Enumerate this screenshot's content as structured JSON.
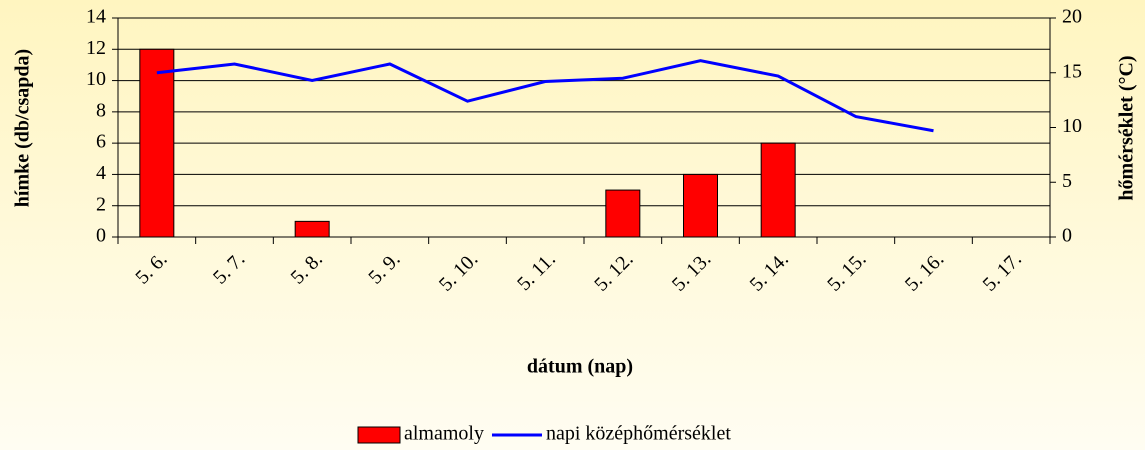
{
  "chart_data": {
    "type": "bar-line",
    "x_label": "dátum (nap)",
    "y_label": "hímke (db/csapda)",
    "y2_label": "hőmérséklet (°C)",
    "categories": [
      "5. 6.",
      "5. 7.",
      "5. 8.",
      "5. 9.",
      "5. 10.",
      "5. 11.",
      "5. 12.",
      "5. 13.",
      "5. 14.",
      "5. 15.",
      "5. 16.",
      "5. 17."
    ],
    "series": [
      {
        "name": "almamoly",
        "type": "bar",
        "color": "#ff0000",
        "values": [
          12,
          0,
          1,
          0,
          0,
          0,
          3,
          4,
          6,
          0,
          0,
          0
        ]
      },
      {
        "name": "napi középhőmérséklet",
        "type": "line",
        "axis": "y2",
        "color": "#0000ff",
        "values": [
          15.0,
          15.8,
          14.3,
          15.8,
          12.4,
          14.2,
          14.5,
          16.1,
          14.7,
          11.0,
          9.7,
          null
        ]
      }
    ],
    "ylim": [
      0,
      14
    ],
    "yticks": [
      0,
      2,
      4,
      6,
      8,
      10,
      12,
      14
    ],
    "y2lim": [
      0,
      20
    ],
    "y2ticks": [
      0,
      5,
      10,
      15,
      20
    ],
    "grid": true,
    "legend": "bottom"
  }
}
